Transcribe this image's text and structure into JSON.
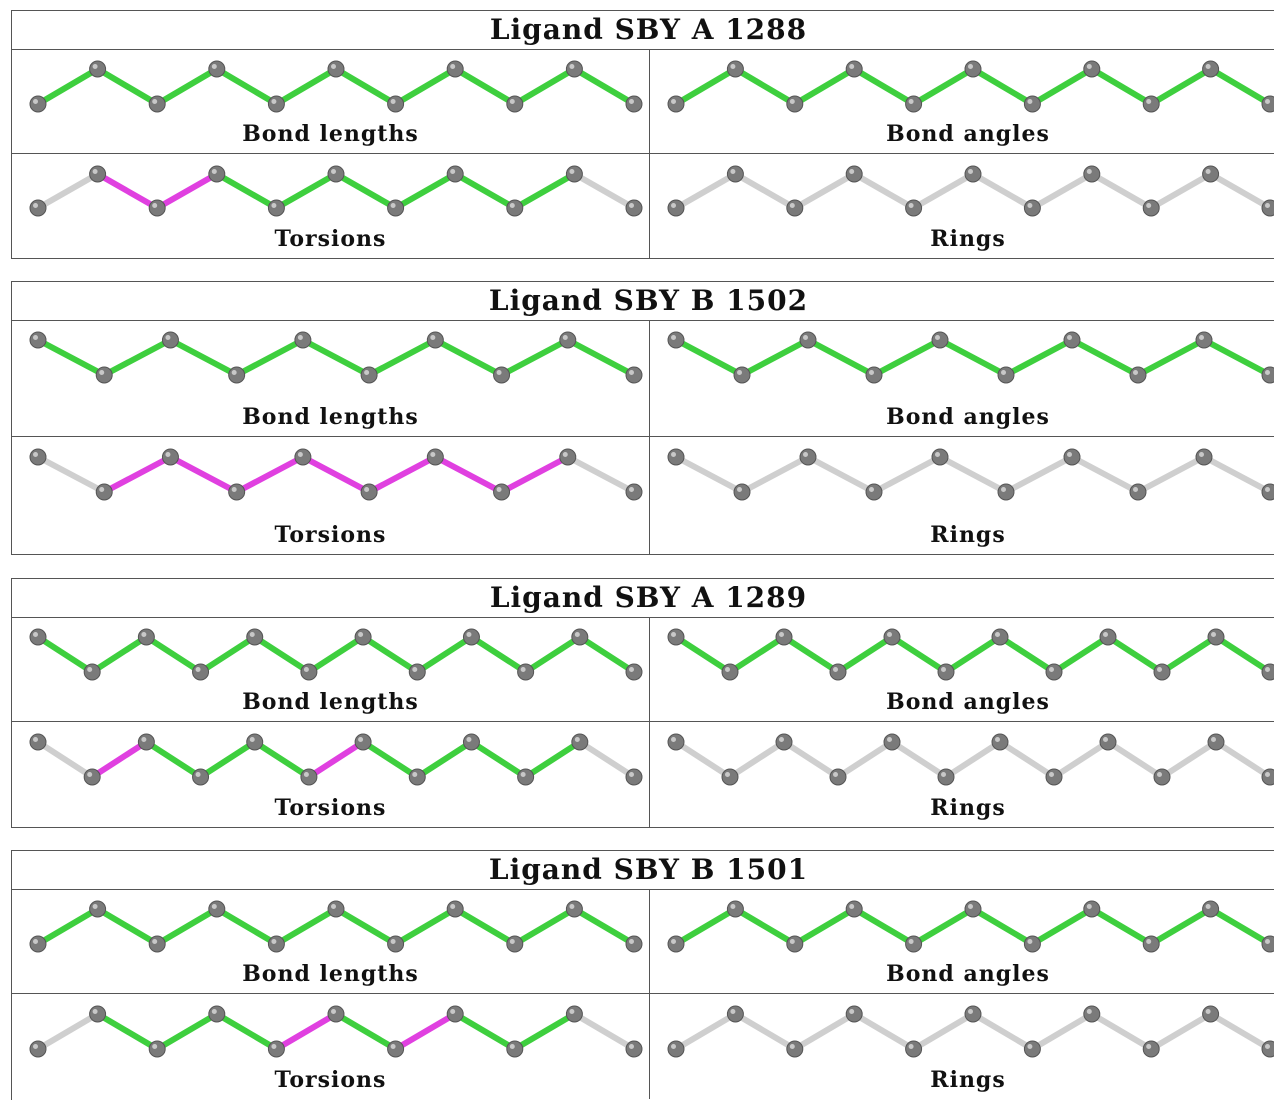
{
  "colors": {
    "carbon": "#7a7a7a",
    "ok": "#3ecf3e",
    "outlier": "#e040e0",
    "neutral": "#cfcfcf"
  },
  "panel_labels": {
    "bond_lengths": "Bond lengths",
    "bond_angles": "Bond angles",
    "torsions": "Torsions",
    "rings": "Rings"
  },
  "ligands": [
    {
      "title": "Ligand SBY A 1288",
      "bond_lengths": [
        "ok",
        "ok",
        "ok",
        "ok",
        "ok",
        "ok",
        "ok",
        "ok",
        "ok",
        "ok"
      ],
      "bond_angles": [
        "ok",
        "ok",
        "ok",
        "ok",
        "ok",
        "ok",
        "ok",
        "ok",
        "ok",
        "ok"
      ],
      "torsions": [
        "neutral",
        "outlier",
        "outlier",
        "ok",
        "ok",
        "ok",
        "ok",
        "ok",
        "ok",
        "neutral"
      ],
      "rings": [
        "neutral",
        "neutral",
        "neutral",
        "neutral",
        "neutral",
        "neutral",
        "neutral",
        "neutral",
        "neutral",
        "neutral"
      ]
    },
    {
      "title": "Ligand SBY B 1502",
      "bond_lengths": [
        "ok",
        "ok",
        "ok",
        "ok",
        "ok",
        "ok",
        "ok",
        "ok",
        "ok"
      ],
      "bond_angles": [
        "ok",
        "ok",
        "ok",
        "ok",
        "ok",
        "ok",
        "ok",
        "ok",
        "ok"
      ],
      "torsions": [
        "neutral",
        "outlier",
        "outlier",
        "outlier",
        "outlier",
        "outlier",
        "outlier",
        "outlier",
        "neutral"
      ],
      "rings": [
        "neutral",
        "neutral",
        "neutral",
        "neutral",
        "neutral",
        "neutral",
        "neutral",
        "neutral",
        "neutral"
      ]
    },
    {
      "title": "Ligand SBY A 1289",
      "bond_lengths": [
        "ok",
        "ok",
        "ok",
        "ok",
        "ok",
        "ok",
        "ok",
        "ok",
        "ok",
        "ok",
        "ok"
      ],
      "bond_angles": [
        "ok",
        "ok",
        "ok",
        "ok",
        "ok",
        "ok",
        "ok",
        "ok",
        "ok",
        "ok",
        "ok"
      ],
      "torsions": [
        "neutral",
        "outlier",
        "ok",
        "ok",
        "ok",
        "outlier",
        "ok",
        "ok",
        "ok",
        "ok",
        "neutral"
      ],
      "rings": [
        "neutral",
        "neutral",
        "neutral",
        "neutral",
        "neutral",
        "neutral",
        "neutral",
        "neutral",
        "neutral",
        "neutral",
        "neutral"
      ]
    },
    {
      "title": "Ligand SBY B 1501",
      "bond_lengths": [
        "ok",
        "ok",
        "ok",
        "ok",
        "ok",
        "ok",
        "ok",
        "ok",
        "ok",
        "ok"
      ],
      "bond_angles": [
        "ok",
        "ok",
        "ok",
        "ok",
        "ok",
        "ok",
        "ok",
        "ok",
        "ok",
        "ok"
      ],
      "torsions": [
        "neutral",
        "ok",
        "ok",
        "ok",
        "outlier",
        "ok",
        "outlier",
        "ok",
        "ok",
        "neutral"
      ],
      "rings": [
        "neutral",
        "neutral",
        "neutral",
        "neutral",
        "neutral",
        "neutral",
        "neutral",
        "neutral",
        "neutral",
        "neutral"
      ]
    }
  ]
}
